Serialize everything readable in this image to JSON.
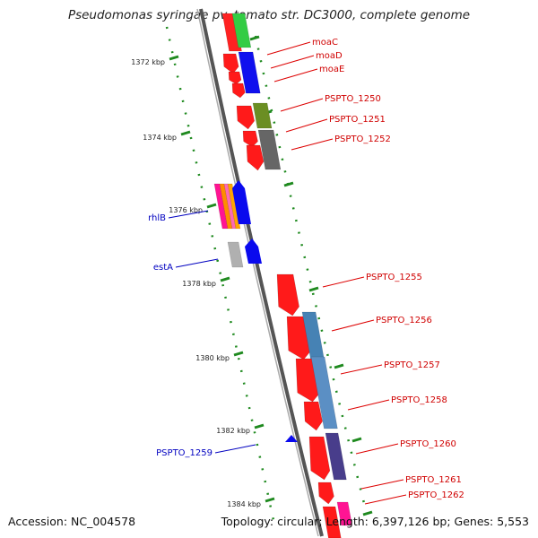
{
  "title": "Pseudomonas syringae pv. tomato str. DC3000, complete genome",
  "footer": {
    "accession": "Accession: NC_004578",
    "summary": "Topology: circular; Length: 6,397,126 bp; Genes: 5,553"
  },
  "scale_ticks": [
    {
      "label": "1372 kbp",
      "value": 1372
    },
    {
      "label": "1374 kbp",
      "value": 1374
    },
    {
      "label": "1376 kbp",
      "value": 1376
    },
    {
      "label": "1378 kbp",
      "value": 1378
    },
    {
      "label": "1380 kbp",
      "value": 1380
    },
    {
      "label": "1382 kbp",
      "value": 1382
    },
    {
      "label": "1384 kbp",
      "value": 1384
    }
  ],
  "gene_labels": [
    {
      "text": "moaC",
      "strand": "forward",
      "color": "#dd0000"
    },
    {
      "text": "moaD",
      "strand": "forward",
      "color": "#dd0000"
    },
    {
      "text": "moaE",
      "strand": "forward",
      "color": "#dd0000"
    },
    {
      "text": "PSPTO_1250",
      "strand": "forward",
      "color": "#dd0000"
    },
    {
      "text": "PSPTO_1251",
      "strand": "forward",
      "color": "#dd0000"
    },
    {
      "text": "PSPTO_1252",
      "strand": "forward",
      "color": "#dd0000"
    },
    {
      "text": "rhlB",
      "strand": "reverse",
      "color": "#0000c0"
    },
    {
      "text": "estA",
      "strand": "reverse",
      "color": "#0000c0"
    },
    {
      "text": "PSPTO_1255",
      "strand": "forward",
      "color": "#dd0000"
    },
    {
      "text": "PSPTO_1256",
      "strand": "forward",
      "color": "#dd0000"
    },
    {
      "text": "PSPTO_1257",
      "strand": "forward",
      "color": "#dd0000"
    },
    {
      "text": "PSPTO_1258",
      "strand": "forward",
      "color": "#dd0000"
    },
    {
      "text": "PSPTO_1259",
      "strand": "reverse",
      "color": "#0000c0"
    },
    {
      "text": "PSPTO_1260",
      "strand": "forward",
      "color": "#dd0000"
    },
    {
      "text": "PSPTO_1261",
      "strand": "forward",
      "color": "#dd0000"
    },
    {
      "text": "PSPTO_1262",
      "strand": "forward",
      "color": "#dd0000"
    }
  ]
}
